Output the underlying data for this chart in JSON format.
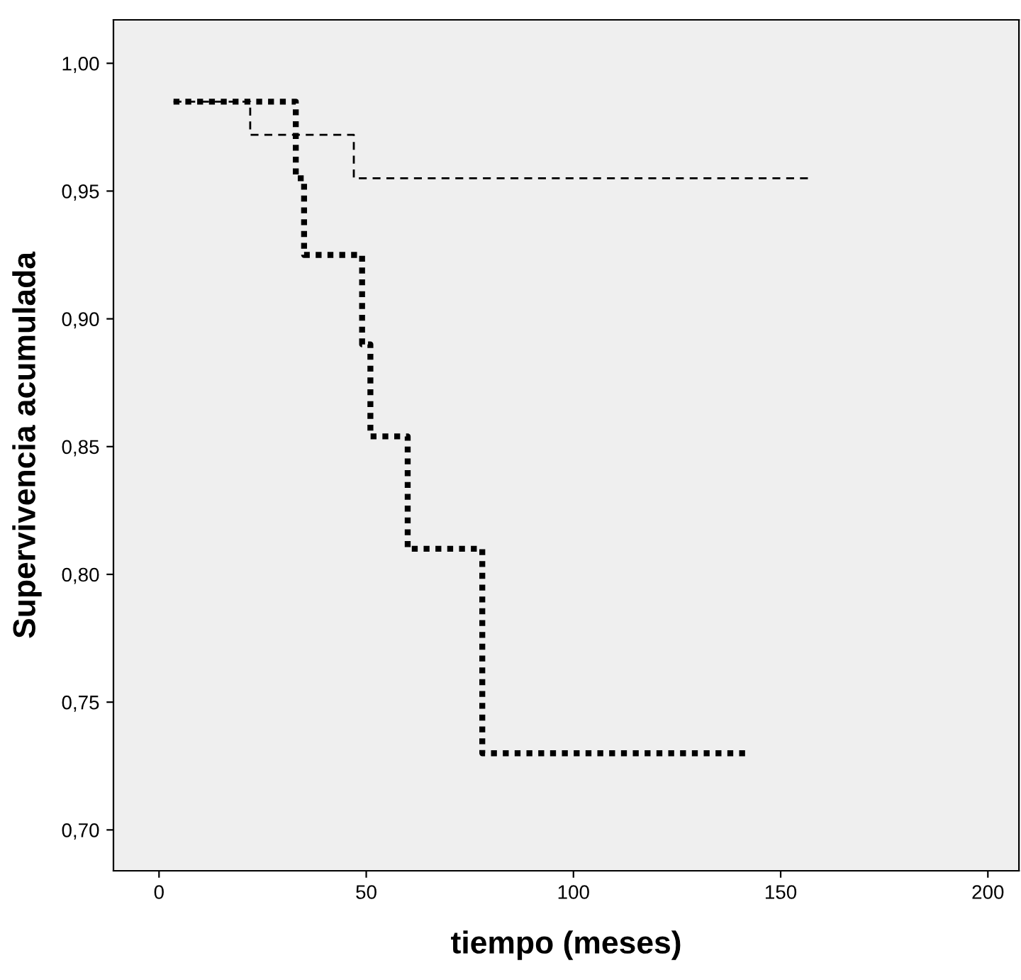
{
  "chart_data": {
    "type": "step",
    "xlabel": "tiempo (meses)",
    "ylabel": "Supervivencia acumulada",
    "xlim": [
      -11,
      207.5
    ],
    "ylim": [
      0.684,
      1.017
    ],
    "xticks": [
      0,
      50,
      100,
      150,
      200
    ],
    "yticks": [
      {
        "value": 0.7,
        "label": "0,70"
      },
      {
        "value": 0.75,
        "label": "0,75"
      },
      {
        "value": 0.8,
        "label": "0,80"
      },
      {
        "value": 0.85,
        "label": "0,85"
      },
      {
        "value": 0.9,
        "label": "0,90"
      },
      {
        "value": 0.95,
        "label": "0,95"
      },
      {
        "value": 1.0,
        "label": "1,00"
      }
    ],
    "grid": false,
    "legend": false,
    "series": [
      {
        "color": "#000000",
        "line_style": "dashed",
        "x": [
          3.5,
          22,
          47,
          157
        ],
        "values": [
          0.985,
          0.972,
          0.955,
          0.955
        ]
      },
      {
        "color": "#000000",
        "line_style": "dotted",
        "x": [
          3.5,
          33,
          35,
          49,
          51,
          60,
          78,
          142
        ],
        "values": [
          0.985,
          0.955,
          0.925,
          0.89,
          0.854,
          0.81,
          0.73,
          0.73
        ]
      }
    ]
  }
}
